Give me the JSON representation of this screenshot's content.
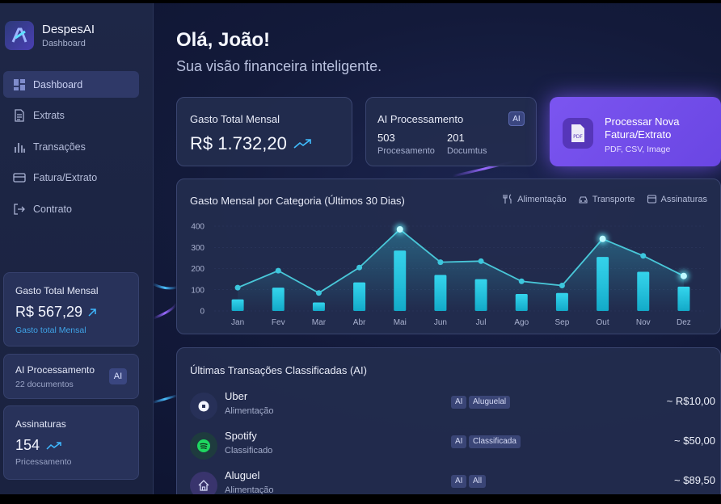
{
  "brand": {
    "name": "DespesAI",
    "subtitle": "Dashboard"
  },
  "sidebar": {
    "items": [
      {
        "label": "Dashboard",
        "icon": "dashboard-icon",
        "active": true
      },
      {
        "label": "Extrats",
        "icon": "document-icon",
        "active": false
      },
      {
        "label": "Transações",
        "icon": "bar-chart-icon",
        "active": false
      },
      {
        "label": "Fatura/Extrato",
        "icon": "card-icon",
        "active": false
      },
      {
        "label": "Contrato",
        "icon": "logout-icon",
        "active": false
      }
    ],
    "cards": {
      "monthly": {
        "title": "Gasto Total Mensal",
        "value": "R$ 567,29",
        "sub": "Gasto total Mensal"
      },
      "ai": {
        "title": "AI Processamento",
        "sub": "22 documentos",
        "badge": "AI"
      },
      "subs": {
        "title": "Assinaturas",
        "value": "154",
        "sub": "Pricessamento"
      }
    }
  },
  "header": {
    "greeting": "Olá, João!",
    "subtitle": "Sua visão financeira inteligente."
  },
  "stats": {
    "monthly": {
      "title": "Gasto Total Mensal",
      "value": "R$ 1.732,20"
    },
    "ai": {
      "title": "AI Processamento",
      "badge": "AI",
      "count1": "503",
      "label1": "Procesamento",
      "count2": "201",
      "label2": "Documtus"
    }
  },
  "cta": {
    "title": "Processar Nova Fatura/Extrato",
    "subtitle": "PDF, CSV, Image",
    "icon_text": "PDF"
  },
  "chart": {
    "title": "Gasto Mensal por Categoria (Últimos 30 Dias)",
    "legend": [
      {
        "label": "Alimentação",
        "icon": "utensils-icon"
      },
      {
        "label": "Transporte",
        "icon": "car-icon"
      },
      {
        "label": "Assinaturas",
        "icon": "subscription-icon"
      }
    ]
  },
  "chart_data": {
    "type": "bar",
    "title": "Gasto Mensal por Categoria (Últimos 30 Dias)",
    "categories": [
      "Jan",
      "Fev",
      "Mar",
      "Abr",
      "Mai",
      "Jun",
      "Jul",
      "Ago",
      "Sep",
      "Out",
      "Nov",
      "Dez"
    ],
    "series": [
      {
        "type": "bar",
        "values": [
          55,
          110,
          40,
          135,
          285,
          170,
          150,
          80,
          85,
          255,
          185,
          115
        ]
      },
      {
        "type": "line",
        "values": [
          110,
          190,
          85,
          205,
          385,
          230,
          235,
          140,
          120,
          340,
          260,
          165
        ]
      }
    ],
    "yticks": [
      0,
      100,
      200,
      300,
      400
    ],
    "ylim": [
      0,
      400
    ],
    "colors": {
      "bar": "#1fc3df",
      "line": "#49c7d8"
    }
  },
  "transactions": {
    "title": "Últimas Transações Classificadas (AI)",
    "rows": [
      {
        "name": "Uber",
        "category": "Alimentação",
        "tags": [
          "AI",
          "Aluguelal"
        ],
        "amount": "~ R$10,00",
        "icon": "uber-icon",
        "color": "#273058"
      },
      {
        "name": "Spotify",
        "category": "Classificado",
        "tags": [
          "AI",
          "Classificada"
        ],
        "amount": "~ $50,00",
        "icon": "spotify-icon",
        "color": "#1e3b3e"
      },
      {
        "name": "Aluguel",
        "category": "Alimentação",
        "tags": [
          "AI",
          "All"
        ],
        "amount": "~ $89,50",
        "icon": "house-icon",
        "color": "#39346d"
      }
    ]
  }
}
